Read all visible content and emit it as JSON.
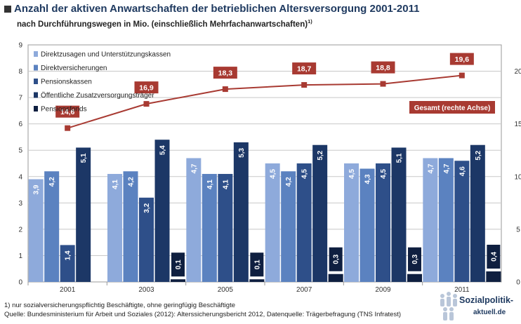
{
  "header": {
    "title": "Anzahl der aktiven Anwartschaften der betrieblichen Altersversorgung 2001-2011",
    "subtitle": "nach Durchführungswegen in Mio. (einschließlich Mehrfachanwartschaften)",
    "subtitle_note": "1)"
  },
  "footer": {
    "footnote": "1) nur sozialversicherungspflichtig Beschäftigte, ohne geringfügig Beschäftigte",
    "source": "Quelle: Bundesministerium für Arbeit und Soziales (2012): Alterssicherungsbericht 2012, Datenquelle: Trägerbefragung (TNS Infratest)"
  },
  "logo": {
    "line1": "Sozialpolitik-",
    "line2": "aktuell.de"
  },
  "chart_data": {
    "type": "bar",
    "title": "Anzahl der aktiven Anwartschaften der betrieblichen Altersversorgung 2001-2011",
    "categories": [
      "2001",
      "2003",
      "2005",
      "2007",
      "2009",
      "2011"
    ],
    "ylim": [
      0,
      9
    ],
    "yticks": [
      0,
      1,
      2,
      3,
      4,
      5,
      6,
      7,
      8,
      9
    ],
    "y2lim": [
      0,
      22.5
    ],
    "y2ticks": [
      0,
      5,
      10,
      15,
      20
    ],
    "grid": true,
    "legend_position": "top-left",
    "series": [
      {
        "name": "Direktzusagen und Unterstützungskassen",
        "color": "#8eaadb",
        "values": [
          3.9,
          4.1,
          4.7,
          4.5,
          4.5,
          4.7
        ],
        "labels": [
          "3,9",
          "4,1",
          "4,7",
          "4,5",
          "4,5",
          "4,7"
        ]
      },
      {
        "name": "Direktversicherungen",
        "color": "#5b82c0",
        "values": [
          4.2,
          4.2,
          4.1,
          4.2,
          4.3,
          4.7
        ],
        "labels": [
          "4,2",
          "4,2",
          "4,1",
          "4,2",
          "4,3",
          "4,7"
        ]
      },
      {
        "name": "Pensionskassen",
        "color": "#2e4f89",
        "values": [
          1.4,
          3.2,
          4.1,
          4.5,
          4.5,
          4.6
        ],
        "labels": [
          "1,4",
          "3,2",
          "4,1",
          "4,5",
          "4,5",
          "4,6"
        ]
      },
      {
        "name": "Öffentliche Zusatzversorgungsträger",
        "color": "#1c3766",
        "values": [
          5.1,
          5.4,
          5.3,
          5.2,
          5.1,
          5.2
        ],
        "labels": [
          "5,1",
          "5,4",
          "5,3",
          "5,2",
          "5,1",
          "5,2"
        ]
      },
      {
        "name": "Pensionsfonds",
        "color": "#0f1f40",
        "values": [
          0,
          0.1,
          0.1,
          0.3,
          0.3,
          0.4
        ],
        "labels": [
          "",
          "0,1",
          "0,1",
          "0,3",
          "0,3",
          "0,4"
        ]
      }
    ],
    "line": {
      "name": "Gesamt (rechte Achse)",
      "axis": "right",
      "color": "#a83a32",
      "values": [
        14.6,
        16.9,
        18.3,
        18.7,
        18.8,
        19.6
      ],
      "labels": [
        "14,6",
        "16,9",
        "18,3",
        "18,7",
        "18,8",
        "19,6"
      ]
    }
  }
}
